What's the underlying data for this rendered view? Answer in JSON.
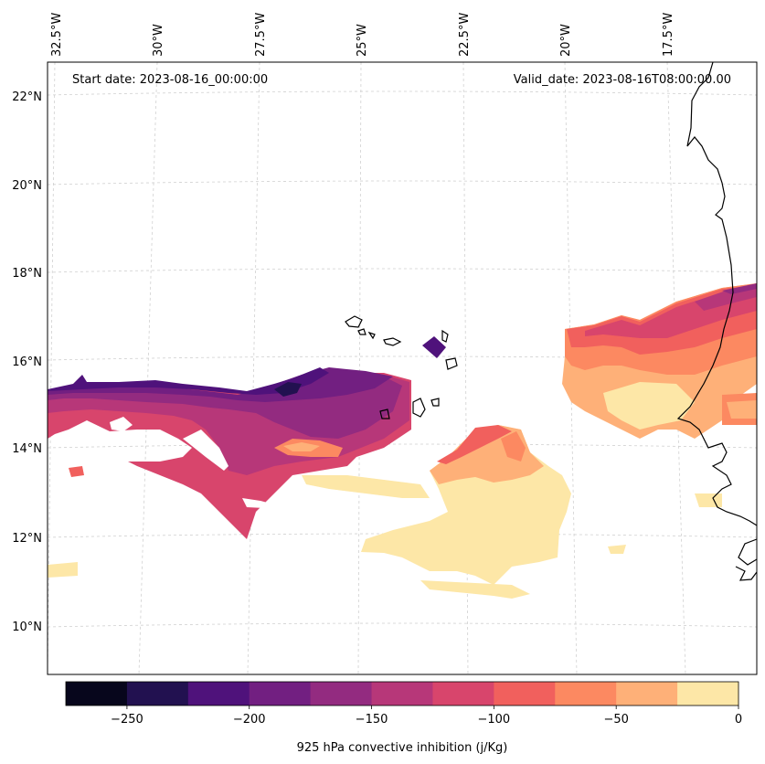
{
  "header": {
    "start_date": "Start date: 2023-08-16_00:00:00",
    "valid_date": "Valid_date: 2023-08-16T08:00:00.00"
  },
  "longitude_labels": [
    "32.5°W",
    "30°W",
    "27.5°W",
    "25°W",
    "22.5°W",
    "20°W",
    "17.5°W"
  ],
  "latitude_labels": [
    "22°N",
    "20°N",
    "18°N",
    "16°N",
    "14°N",
    "12°N",
    "10°N"
  ],
  "colorbar": {
    "title": "925 hPa convective inhibition (j/Kg)",
    "tick_labels": [
      "−250",
      "−200",
      "−150",
      "−100",
      "−50",
      "0"
    ],
    "levels": [
      -275,
      -250,
      -225,
      -200,
      -175,
      -150,
      -125,
      -100,
      -75,
      -50,
      -25,
      0
    ],
    "colors": [
      "#07061c",
      "#221150",
      "#4f127b",
      "#721f81",
      "#932b80",
      "#b73779",
      "#d8456c",
      "#f1605d",
      "#fc8961",
      "#feb078",
      "#fde7a7"
    ]
  },
  "colors": {
    "coastline": "#000000",
    "gridline": "#cccccc",
    "land_bg": "#ffffff"
  }
}
